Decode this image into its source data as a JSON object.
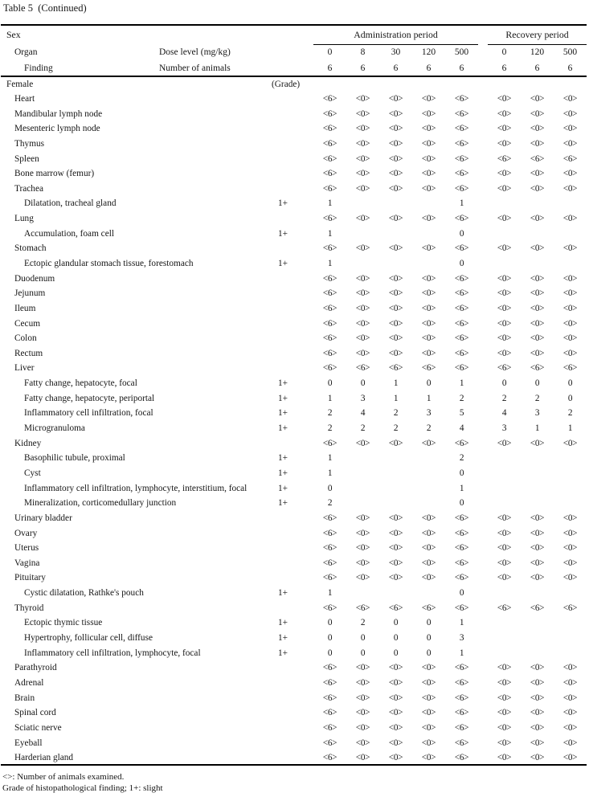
{
  "title": "Table 5  (Continued)",
  "header": {
    "sex": "Sex",
    "organ": "Organ",
    "finding": "Finding",
    "dose_label": "Dose level (mg/kg)",
    "animals_label": "Number of animals",
    "admin_title": "Administration period",
    "recovery_title": "Recovery period",
    "admin_doses": [
      "0",
      "8",
      "30",
      "120",
      "500"
    ],
    "admin_n": [
      "6",
      "6",
      "6",
      "6",
      "6"
    ],
    "recovery_doses": [
      "0",
      "120",
      "500"
    ],
    "recovery_n": [
      "6",
      "6",
      "6"
    ]
  },
  "rows": [
    {
      "label": "Female",
      "indent": 0,
      "grade": "(Grade)",
      "values": [
        "",
        "",
        "",
        "",
        "",
        "",
        "",
        ""
      ]
    },
    {
      "label": "Heart",
      "indent": 1,
      "grade": "",
      "values": [
        "<6>",
        "<0>",
        "<0>",
        "<0>",
        "<6>",
        "<0>",
        "<0>",
        "<0>"
      ]
    },
    {
      "label": "Mandibular lymph node",
      "indent": 1,
      "grade": "",
      "values": [
        "<6>",
        "<0>",
        "<0>",
        "<0>",
        "<6>",
        "<0>",
        "<0>",
        "<0>"
      ]
    },
    {
      "label": "Mesenteric lymph node",
      "indent": 1,
      "grade": "",
      "values": [
        "<6>",
        "<0>",
        "<0>",
        "<0>",
        "<6>",
        "<0>",
        "<0>",
        "<0>"
      ]
    },
    {
      "label": "Thymus",
      "indent": 1,
      "grade": "",
      "values": [
        "<6>",
        "<0>",
        "<0>",
        "<0>",
        "<6>",
        "<0>",
        "<0>",
        "<0>"
      ]
    },
    {
      "label": "Spleen",
      "indent": 1,
      "grade": "",
      "values": [
        "<6>",
        "<0>",
        "<0>",
        "<0>",
        "<6>",
        "<6>",
        "<6>",
        "<6>"
      ]
    },
    {
      "label": "Bone marrow (femur)",
      "indent": 1,
      "grade": "",
      "values": [
        "<6>",
        "<0>",
        "<0>",
        "<0>",
        "<6>",
        "<0>",
        "<0>",
        "<0>"
      ]
    },
    {
      "label": "Trachea",
      "indent": 1,
      "grade": "",
      "values": [
        "<6>",
        "<0>",
        "<0>",
        "<0>",
        "<6>",
        "<0>",
        "<0>",
        "<0>"
      ]
    },
    {
      "label": "Dilatation, tracheal gland",
      "indent": 2,
      "grade": "1+",
      "values": [
        "1",
        "",
        "",
        "",
        "1",
        "",
        "",
        ""
      ]
    },
    {
      "label": "Lung",
      "indent": 1,
      "grade": "",
      "values": [
        "<6>",
        "<0>",
        "<0>",
        "<0>",
        "<6>",
        "<0>",
        "<0>",
        "<0>"
      ]
    },
    {
      "label": "Accumulation, foam cell",
      "indent": 2,
      "grade": "1+",
      "values": [
        "1",
        "",
        "",
        "",
        "0",
        "",
        "",
        ""
      ]
    },
    {
      "label": "Stomach",
      "indent": 1,
      "grade": "",
      "values": [
        "<6>",
        "<0>",
        "<0>",
        "<0>",
        "<6>",
        "<0>",
        "<0>",
        "<0>"
      ]
    },
    {
      "label": "Ectopic glandular stomach tissue, forestomach",
      "indent": 2,
      "grade": "1+",
      "values": [
        "1",
        "",
        "",
        "",
        "0",
        "",
        "",
        ""
      ]
    },
    {
      "label": "Duodenum",
      "indent": 1,
      "grade": "",
      "values": [
        "<6>",
        "<0>",
        "<0>",
        "<0>",
        "<6>",
        "<0>",
        "<0>",
        "<0>"
      ]
    },
    {
      "label": "Jejunum",
      "indent": 1,
      "grade": "",
      "values": [
        "<6>",
        "<0>",
        "<0>",
        "<0>",
        "<6>",
        "<0>",
        "<0>",
        "<0>"
      ]
    },
    {
      "label": "Ileum",
      "indent": 1,
      "grade": "",
      "values": [
        "<6>",
        "<0>",
        "<0>",
        "<0>",
        "<6>",
        "<0>",
        "<0>",
        "<0>"
      ]
    },
    {
      "label": "Cecum",
      "indent": 1,
      "grade": "",
      "values": [
        "<6>",
        "<0>",
        "<0>",
        "<0>",
        "<6>",
        "<0>",
        "<0>",
        "<0>"
      ]
    },
    {
      "label": "Colon",
      "indent": 1,
      "grade": "",
      "values": [
        "<6>",
        "<0>",
        "<0>",
        "<0>",
        "<6>",
        "<0>",
        "<0>",
        "<0>"
      ]
    },
    {
      "label": "Rectum",
      "indent": 1,
      "grade": "",
      "values": [
        "<6>",
        "<0>",
        "<0>",
        "<0>",
        "<6>",
        "<0>",
        "<0>",
        "<0>"
      ]
    },
    {
      "label": "Liver",
      "indent": 1,
      "grade": "",
      "values": [
        "<6>",
        "<6>",
        "<6>",
        "<6>",
        "<6>",
        "<6>",
        "<6>",
        "<6>"
      ]
    },
    {
      "label": "Fatty change, hepatocyte, focal",
      "indent": 2,
      "grade": "1+",
      "values": [
        "0",
        "0",
        "1",
        "0",
        "1",
        "0",
        "0",
        "0"
      ]
    },
    {
      "label": "Fatty change, hepatocyte, periportal",
      "indent": 2,
      "grade": "1+",
      "values": [
        "1",
        "3",
        "1",
        "1",
        "2",
        "2",
        "2",
        "0"
      ]
    },
    {
      "label": "Inflammatory cell infiltration, focal",
      "indent": 2,
      "grade": "1+",
      "values": [
        "2",
        "4",
        "2",
        "3",
        "5",
        "4",
        "3",
        "2"
      ]
    },
    {
      "label": "Microgranuloma",
      "indent": 2,
      "grade": "1+",
      "values": [
        "2",
        "2",
        "2",
        "2",
        "4",
        "3",
        "1",
        "1"
      ]
    },
    {
      "label": "Kidney",
      "indent": 1,
      "grade": "",
      "values": [
        "<6>",
        "<0>",
        "<0>",
        "<0>",
        "<6>",
        "<0>",
        "<0>",
        "<0>"
      ]
    },
    {
      "label": "Basophilic tubule, proximal",
      "indent": 2,
      "grade": "1+",
      "values": [
        "1",
        "",
        "",
        "",
        "2",
        "",
        "",
        ""
      ]
    },
    {
      "label": "Cyst",
      "indent": 2,
      "grade": "1+",
      "values": [
        "1",
        "",
        "",
        "",
        "0",
        "",
        "",
        ""
      ]
    },
    {
      "label": "Inflammatory cell infiltration, lymphocyte, interstitium, focal",
      "indent": 2,
      "grade": "1+",
      "values": [
        "0",
        "",
        "",
        "",
        "1",
        "",
        "",
        ""
      ]
    },
    {
      "label": "Mineralization, corticomedullary junction",
      "indent": 2,
      "grade": "1+",
      "values": [
        "2",
        "",
        "",
        "",
        "0",
        "",
        "",
        ""
      ]
    },
    {
      "label": "Urinary bladder",
      "indent": 1,
      "grade": "",
      "values": [
        "<6>",
        "<0>",
        "<0>",
        "<0>",
        "<6>",
        "<0>",
        "<0>",
        "<0>"
      ]
    },
    {
      "label": "Ovary",
      "indent": 1,
      "grade": "",
      "values": [
        "<6>",
        "<0>",
        "<0>",
        "<0>",
        "<6>",
        "<0>",
        "<0>",
        "<0>"
      ]
    },
    {
      "label": "Uterus",
      "indent": 1,
      "grade": "",
      "values": [
        "<6>",
        "<0>",
        "<0>",
        "<0>",
        "<6>",
        "<0>",
        "<0>",
        "<0>"
      ]
    },
    {
      "label": "Vagina",
      "indent": 1,
      "grade": "",
      "values": [
        "<6>",
        "<0>",
        "<0>",
        "<0>",
        "<6>",
        "<0>",
        "<0>",
        "<0>"
      ]
    },
    {
      "label": "Pituitary",
      "indent": 1,
      "grade": "",
      "values": [
        "<6>",
        "<0>",
        "<0>",
        "<0>",
        "<6>",
        "<0>",
        "<0>",
        "<0>"
      ]
    },
    {
      "label": "Cystic dilatation, Rathke's pouch",
      "indent": 2,
      "grade": "1+",
      "values": [
        "1",
        "",
        "",
        "",
        "0",
        "",
        "",
        ""
      ]
    },
    {
      "label": "Thyroid",
      "indent": 1,
      "grade": "",
      "values": [
        "<6>",
        "<6>",
        "<6>",
        "<6>",
        "<6>",
        "<6>",
        "<6>",
        "<6>"
      ]
    },
    {
      "label": "Ectopic thymic tissue",
      "indent": 2,
      "grade": "1+",
      "values": [
        "0",
        "2",
        "0",
        "0",
        "1",
        "",
        "",
        ""
      ]
    },
    {
      "label": "Hypertrophy, follicular cell, diffuse",
      "indent": 2,
      "grade": "1+",
      "values": [
        "0",
        "0",
        "0",
        "0",
        "3",
        "",
        "",
        ""
      ]
    },
    {
      "label": "Inflammatory cell infiltration, lymphocyte, focal",
      "indent": 2,
      "grade": "1+",
      "values": [
        "0",
        "0",
        "0",
        "0",
        "1",
        "",
        "",
        ""
      ]
    },
    {
      "label": "Parathyroid",
      "indent": 1,
      "grade": "",
      "values": [
        "<6>",
        "<0>",
        "<0>",
        "<0>",
        "<6>",
        "<0>",
        "<0>",
        "<0>"
      ]
    },
    {
      "label": "Adrenal",
      "indent": 1,
      "grade": "",
      "values": [
        "<6>",
        "<0>",
        "<0>",
        "<0>",
        "<6>",
        "<0>",
        "<0>",
        "<0>"
      ]
    },
    {
      "label": "Brain",
      "indent": 1,
      "grade": "",
      "values": [
        "<6>",
        "<0>",
        "<0>",
        "<0>",
        "<6>",
        "<0>",
        "<0>",
        "<0>"
      ]
    },
    {
      "label": "Spinal cord",
      "indent": 1,
      "grade": "",
      "values": [
        "<6>",
        "<0>",
        "<0>",
        "<0>",
        "<6>",
        "<0>",
        "<0>",
        "<0>"
      ]
    },
    {
      "label": "Sciatic nerve",
      "indent": 1,
      "grade": "",
      "values": [
        "<6>",
        "<0>",
        "<0>",
        "<0>",
        "<6>",
        "<0>",
        "<0>",
        "<0>"
      ]
    },
    {
      "label": "Eyeball",
      "indent": 1,
      "grade": "",
      "values": [
        "<6>",
        "<0>",
        "<0>",
        "<0>",
        "<6>",
        "<0>",
        "<0>",
        "<0>"
      ]
    },
    {
      "label": "Harderian gland",
      "indent": 1,
      "grade": "",
      "values": [
        "<6>",
        "<0>",
        "<0>",
        "<0>",
        "<6>",
        "<0>",
        "<0>",
        "<0>"
      ]
    }
  ],
  "footnotes": [
    "<>: Number of animals examined.",
    "Grade of histopathological finding; 1+: slight"
  ]
}
